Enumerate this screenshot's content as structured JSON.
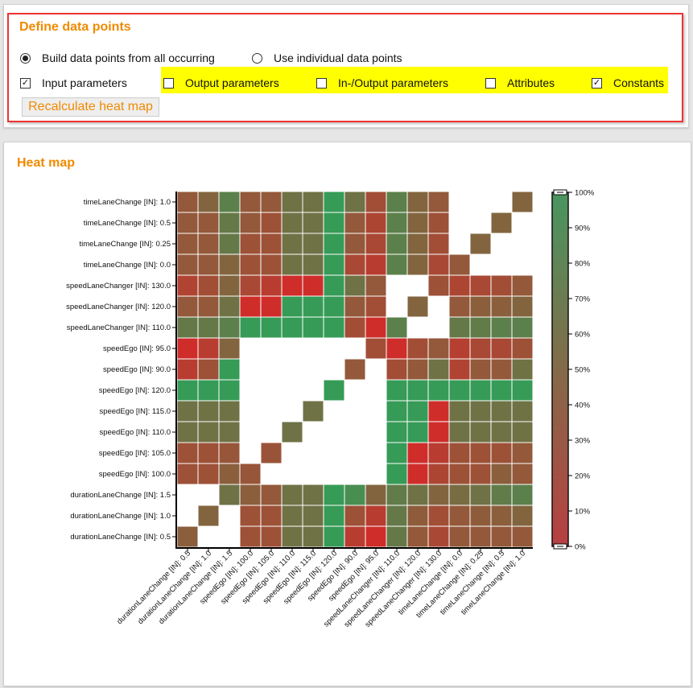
{
  "define": {
    "title": "Define data points",
    "radio": [
      {
        "label": "Build data points from all occurring",
        "checked": true
      },
      {
        "label": "Use individual data points",
        "checked": false
      }
    ],
    "checks": [
      {
        "label": "Input parameters",
        "checked": true
      },
      {
        "label": "Output parameters",
        "checked": false
      },
      {
        "label": "In-/Output parameters",
        "checked": false
      },
      {
        "label": "Attributes",
        "checked": false
      },
      {
        "label": "Constants",
        "checked": true
      }
    ],
    "recalc_label": "Recalculate heat map",
    "highlight_color": "#ffff00"
  },
  "heatmap": {
    "title": "Heat map"
  },
  "chart_data": {
    "type": "heatmap",
    "rows": [
      "timeLaneChange [IN]: 1.0",
      "timeLaneChange [IN]: 0.5",
      "timeLaneChange [IN]: 0.25",
      "timeLaneChange [IN]: 0.0",
      "speedLaneChanger [IN]: 130.0",
      "speedLaneChanger [IN]: 120.0",
      "speedLaneChanger [IN]: 110.0",
      "speedEgo [IN]: 95.0",
      "speedEgo [IN]: 90.0",
      "speedEgo [IN]: 120.0",
      "speedEgo [IN]: 115.0",
      "speedEgo [IN]: 110.0",
      "speedEgo [IN]: 105.0",
      "speedEgo [IN]: 100.0",
      "durationLaneChange [IN]: 1.5",
      "durationLaneChange [IN]: 1.0",
      "durationLaneChange [IN]: 0.5"
    ],
    "columns": [
      "durationLaneChange [IN]: 0.5",
      "durationLaneChange [IN]: 1.0",
      "durationLaneChange [IN]: 1.5",
      "speedEgo [IN]: 100.0",
      "speedEgo [IN]: 105.0",
      "speedEgo [IN]: 110.0",
      "speedEgo [IN]: 115.0",
      "speedEgo [IN]: 120.0",
      "speedEgo [IN]: 90.0",
      "speedEgo [IN]: 95.0",
      "speedLaneChanger [IN]: 110.0",
      "speedLaneChanger [IN]: 120.0",
      "speedLaneChanger [IN]: 130.0",
      "timeLaneChange [IN]: 0.0",
      "timeLaneChange [IN]: 0.25",
      "timeLaneChange [IN]: 0.5",
      "timeLaneChange [IN]: 1.0"
    ],
    "values": [
      [
        45,
        55,
        75,
        45,
        45,
        65,
        65,
        95,
        65,
        35,
        75,
        55,
        45,
        null,
        null,
        null,
        55
      ],
      [
        45,
        45,
        70,
        45,
        38,
        65,
        65,
        95,
        45,
        28,
        75,
        55,
        38,
        null,
        null,
        55,
        null
      ],
      [
        45,
        45,
        70,
        38,
        38,
        65,
        65,
        95,
        45,
        30,
        75,
        55,
        35,
        null,
        55,
        null,
        null
      ],
      [
        45,
        45,
        55,
        38,
        38,
        65,
        65,
        95,
        30,
        20,
        75,
        55,
        30,
        45,
        null,
        null,
        null
      ],
      [
        25,
        35,
        55,
        30,
        20,
        5,
        5,
        95,
        65,
        45,
        null,
        null,
        38,
        28,
        30,
        35,
        45
      ],
      [
        45,
        45,
        65,
        5,
        5,
        95,
        95,
        95,
        45,
        35,
        null,
        55,
        null,
        45,
        50,
        50,
        55
      ],
      [
        70,
        70,
        75,
        95,
        95,
        95,
        95,
        95,
        35,
        5,
        75,
        null,
        null,
        70,
        72,
        75,
        75
      ],
      [
        5,
        20,
        55,
        null,
        null,
        null,
        null,
        null,
        null,
        35,
        5,
        35,
        45,
        22,
        30,
        30,
        38
      ],
      [
        20,
        38,
        95,
        null,
        null,
        null,
        null,
        null,
        45,
        null,
        35,
        45,
        65,
        25,
        45,
        45,
        65
      ],
      [
        95,
        95,
        95,
        null,
        null,
        null,
        null,
        95,
        null,
        null,
        95,
        95,
        95,
        95,
        95,
        95,
        95
      ],
      [
        65,
        65,
        65,
        null,
        null,
        null,
        65,
        null,
        null,
        null,
        95,
        95,
        5,
        65,
        65,
        65,
        65
      ],
      [
        65,
        65,
        65,
        null,
        null,
        65,
        null,
        null,
        null,
        null,
        95,
        95,
        5,
        65,
        65,
        65,
        65
      ],
      [
        38,
        38,
        42,
        null,
        40,
        null,
        null,
        null,
        null,
        null,
        95,
        5,
        20,
        38,
        38,
        38,
        45
      ],
      [
        38,
        38,
        50,
        42,
        null,
        null,
        null,
        null,
        null,
        null,
        95,
        5,
        28,
        38,
        38,
        50,
        45
      ],
      [
        null,
        null,
        65,
        50,
        45,
        65,
        65,
        95,
        85,
        55,
        72,
        65,
        55,
        60,
        65,
        72,
        75
      ],
      [
        null,
        55,
        null,
        38,
        38,
        65,
        65,
        95,
        38,
        20,
        70,
        48,
        35,
        45,
        48,
        50,
        55
      ],
      [
        50,
        null,
        null,
        38,
        38,
        65,
        65,
        95,
        20,
        5,
        70,
        45,
        30,
        45,
        45,
        45,
        45
      ]
    ],
    "scale": {
      "ticks": [
        "0%",
        "10%",
        "20%",
        "30%",
        "40%",
        "50%",
        "60%",
        "70%",
        "80%",
        "90%",
        "100%"
      ],
      "min": 0,
      "max": 100,
      "low_color": "#d62728",
      "mid_color": "#8b5e3c",
      "high_color": "#2ca25a"
    }
  }
}
